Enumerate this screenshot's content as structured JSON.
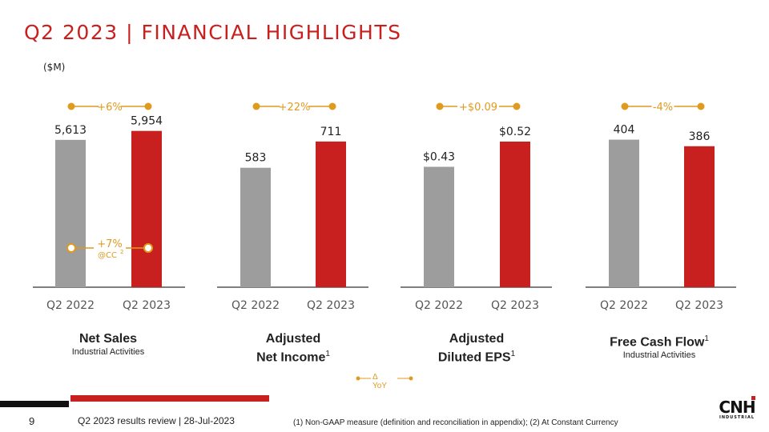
{
  "title": "Q2 2023 | FINANCIAL HIGHLIGHTS",
  "unit": "($M)",
  "colors": {
    "accent": "#c8201f",
    "prior": "#9d9d9d",
    "delta": "#e09a1e",
    "text": "#222222"
  },
  "chart_data": [
    {
      "type": "bar",
      "title": "Net Sales",
      "subtitle": "Industrial Activities",
      "superscript": "",
      "categories": [
        "Q2 2022",
        "Q2 2023"
      ],
      "values": [
        5613,
        5954
      ],
      "labels": [
        "5,613",
        "5,954"
      ],
      "ylim": [
        0,
        6400
      ],
      "delta": "+6%",
      "cc_delta": "+7%",
      "cc_label": "@CC",
      "cc_sup": "2"
    },
    {
      "type": "bar",
      "title": "Adjusted Net Income",
      "subtitle": "",
      "superscript": "1",
      "categories": [
        "Q2 2022",
        "Q2 2023"
      ],
      "values": [
        583,
        711
      ],
      "labels": [
        "583",
        "711"
      ],
      "ylim": [
        0,
        820
      ],
      "delta": "+22%"
    },
    {
      "type": "bar",
      "title": "Adjusted Diluted EPS",
      "subtitle": "",
      "superscript": "1",
      "categories": [
        "Q2 2022",
        "Q2 2023"
      ],
      "values": [
        0.43,
        0.52
      ],
      "labels": [
        "$0.43",
        "$0.52"
      ],
      "ylim": [
        0,
        0.6
      ],
      "delta": "+$0.09"
    },
    {
      "type": "bar",
      "title": "Free Cash Flow",
      "subtitle": "Industrial Activities",
      "superscript": "1",
      "categories": [
        "Q2 2022",
        "Q2 2023"
      ],
      "values": [
        404,
        386
      ],
      "labels": [
        "404",
        "386"
      ],
      "ylim": [
        0,
        460
      ],
      "delta": "-4%"
    }
  ],
  "captions": [
    {
      "line1": "Net Sales",
      "line2": "",
      "sup": "",
      "sub": "Industrial Activities"
    },
    {
      "line1": "Adjusted",
      "line2": "Net Income",
      "sup": "1",
      "sub": ""
    },
    {
      "line1": "Adjusted",
      "line2": "Diluted EPS",
      "sup": "1",
      "sub": ""
    },
    {
      "line1": "Free Cash Flow",
      "line2": "",
      "sup": "1",
      "sub": "Industrial Activities"
    }
  ],
  "legend": "Δ YoY",
  "footer": {
    "page": "9",
    "review": "Q2 2023 results review | 28-Jul-2023",
    "footnote": "(1) Non-GAAP measure (definition and reconciliation in appendix); (2) At Constant Currency"
  },
  "logo": {
    "mark": "CNH",
    "sub": "INDUSTRIAL"
  }
}
